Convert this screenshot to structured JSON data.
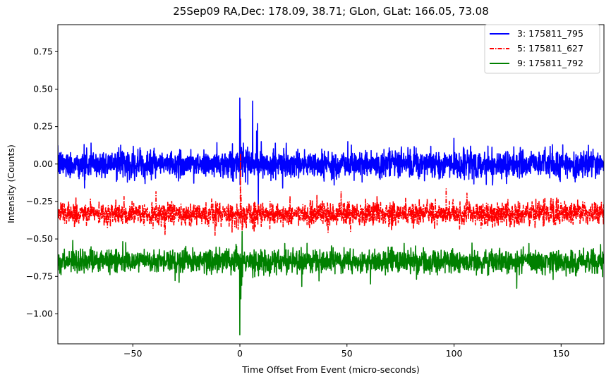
{
  "chart_data": {
    "type": "line",
    "title": "25Sep09 RA,Dec:  178.09,  38.71; GLon, GLat:  166.05,  73.08",
    "xlabel": "Time Offset From Event (micro-seconds)",
    "ylabel": "Intensity (Counts)",
    "xlim": [
      -85,
      170
    ],
    "ylim": [
      -1.2,
      0.93
    ],
    "xticks": [
      -50,
      0,
      50,
      100,
      150
    ],
    "xtick_labels": [
      "−50",
      "0",
      "50",
      "100",
      "150"
    ],
    "yticks": [
      -1.0,
      -0.75,
      -0.5,
      -0.25,
      0.0,
      0.25,
      0.5,
      0.75
    ],
    "ytick_labels": [
      "−1.00",
      "−0.75",
      "−0.50",
      "−0.25",
      "0.00",
      "0.25",
      "0.50",
      "0.75"
    ],
    "legend_position": "top-right",
    "series": [
      {
        "name": "3: 175811_795",
        "color": "#0000ff",
        "style": "solid",
        "baseline": 0.0,
        "noise_amplitude": 0.06,
        "peaks": [
          [
            -69.5,
            0.14
          ],
          [
            -72.5,
            -0.16
          ],
          [
            0.0,
            0.44
          ],
          [
            0.3,
            0.3
          ],
          [
            6.0,
            0.42
          ],
          [
            7.8,
            0.22
          ],
          [
            8.2,
            0.27
          ],
          [
            8.6,
            -0.27
          ],
          [
            10.0,
            0.15
          ],
          [
            20.0,
            -0.16
          ],
          [
            44.0,
            -0.14
          ],
          [
            118.0,
            -0.14
          ]
        ]
      },
      {
        "name": "5: 175811_627",
        "color": "#ff0000",
        "style": "dashdot",
        "baseline": -0.33,
        "noise_amplitude": 0.05,
        "peaks": [
          [
            -35.0,
            -0.47
          ],
          [
            0.3,
            0.07
          ],
          [
            0.6,
            -0.21
          ],
          [
            1.0,
            -0.44
          ],
          [
            36.0,
            -0.21
          ],
          [
            64.0,
            -0.21
          ]
        ]
      },
      {
        "name": "9: 175811_792",
        "color": "#008000",
        "style": "solid",
        "baseline": -0.65,
        "noise_amplitude": 0.05,
        "peaks": [
          [
            -78.0,
            -0.51
          ],
          [
            0.0,
            -1.14
          ],
          [
            0.5,
            -0.9
          ],
          [
            1.0,
            -0.45
          ],
          [
            21.0,
            -0.53
          ],
          [
            37.0,
            -0.78
          ],
          [
            61.0,
            -0.8
          ],
          [
            135.0,
            -0.53
          ]
        ]
      }
    ]
  }
}
